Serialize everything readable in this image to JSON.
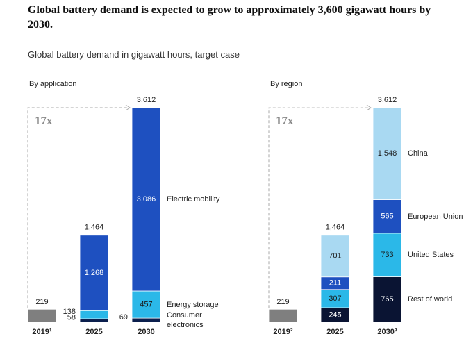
{
  "title": "Global battery demand is expected to grow to approximately 3,600 gigawatt hours by 2030.",
  "subtitle": "Global battery demand in gigawatt hours, target case",
  "chart_data": [
    {
      "type": "stacked_bar",
      "subtitle": "By application",
      "annotation": "17x",
      "categories": [
        "2019¹",
        "2025",
        "2030"
      ],
      "totals": [
        null,
        1464,
        3612
      ],
      "totals_labels": [
        null,
        "1,464",
        "3,612"
      ],
      "series": [
        {
          "color": "#7f7f7f",
          "values": [
            219,
            null,
            null
          ]
        },
        {
          "name": "Consumer electronics",
          "color": "#0b1f4d",
          "values": [
            null,
            58,
            69
          ]
        },
        {
          "name": "Energy storage",
          "color": "#2bb8e8",
          "values": [
            null,
            138,
            457
          ]
        },
        {
          "name": "Electric mobility",
          "color": "#1e50c0",
          "values": [
            null,
            1268,
            3086
          ],
          "value_labels": [
            null,
            "1,268",
            "3,086"
          ]
        }
      ]
    },
    {
      "type": "stacked_bar",
      "subtitle": "By region",
      "annotation": "17x",
      "categories": [
        "2019²",
        "2025",
        "2030³"
      ],
      "totals": [
        null,
        1464,
        3612
      ],
      "totals_labels": [
        null,
        "1,464",
        "3,612"
      ],
      "series": [
        {
          "color": "#7f7f7f",
          "values": [
            219,
            null,
            null
          ]
        },
        {
          "name": "Rest of world",
          "color": "#0a1433",
          "values": [
            null,
            245,
            765
          ]
        },
        {
          "name": "United States",
          "color": "#2bb8e8",
          "values": [
            null,
            307,
            733
          ]
        },
        {
          "name": "European Union",
          "color": "#1e50c0",
          "values": [
            null,
            211,
            565
          ]
        },
        {
          "name": "China",
          "color": "#a9d9f2",
          "values": [
            null,
            701,
            1548
          ],
          "value_labels": [
            null,
            "701",
            "1,548"
          ]
        }
      ]
    }
  ]
}
